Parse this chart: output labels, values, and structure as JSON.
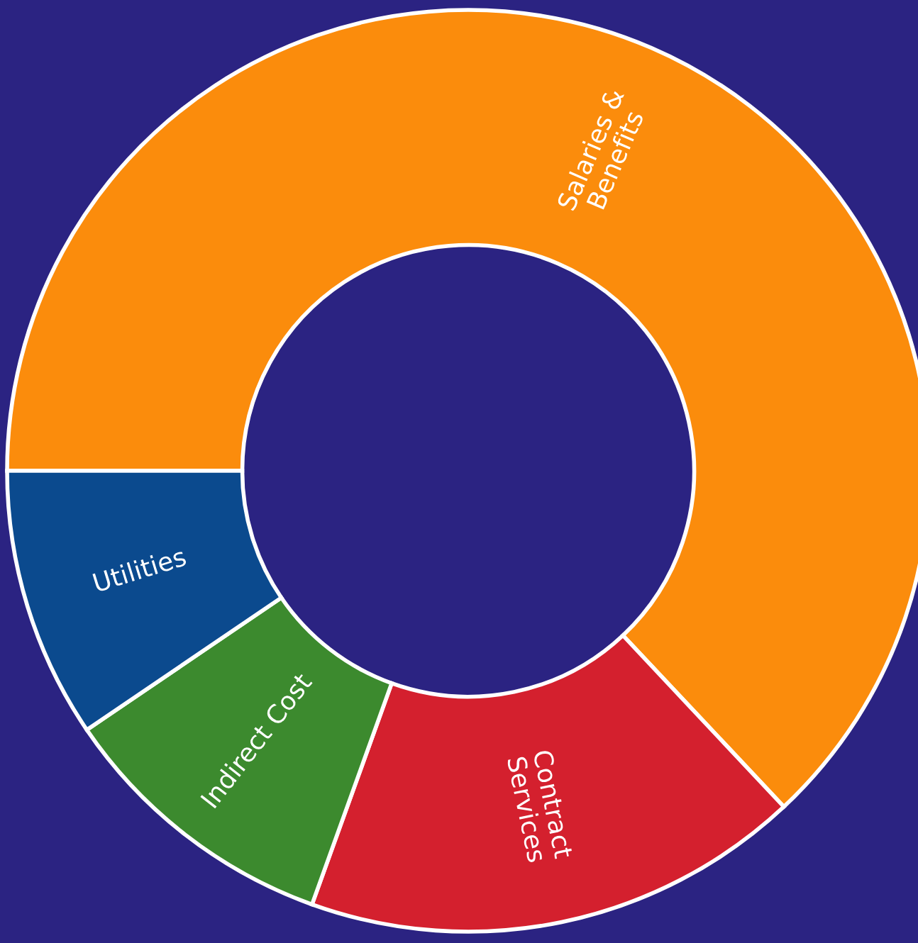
{
  "chart_data": {
    "type": "donut",
    "categories": [
      "Salaries &\nBenefits",
      "Contract\nServices",
      "Indirect Cost",
      "Utilities"
    ],
    "values": [
      63,
      17.5,
      10,
      9.5
    ],
    "colors": [
      "#fb8c0c",
      "#d4202e",
      "#3c8a2e",
      "#0b4a8e"
    ]
  }
}
